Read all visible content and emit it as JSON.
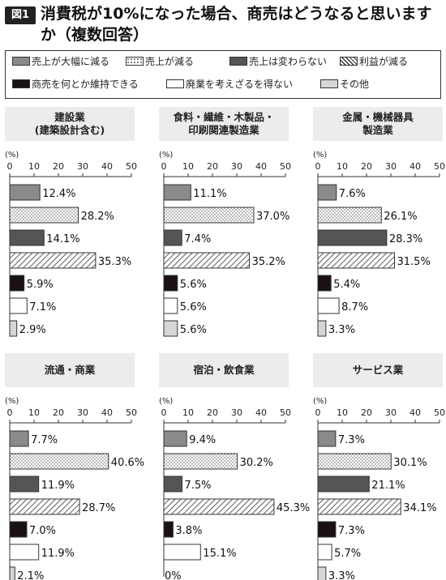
{
  "figure": {
    "badge": "図1",
    "title": "消費税が10%になった場合、商売はどうなると思いますか（複数回答）"
  },
  "colors": {
    "dec_large": "#8a8a8a",
    "dec": "dots",
    "unchanged": "#555555",
    "profit_down": "hatch",
    "maintain": "#1a1212",
    "close": "#ffffff",
    "other": "#d6d6d6"
  },
  "legend": [
    {
      "key": "dec_large",
      "label": "売上が大幅に減る"
    },
    {
      "key": "dec",
      "label": "売上が減る"
    },
    {
      "key": "unchanged",
      "label": "売上は変わらない"
    },
    {
      "key": "profit_down",
      "label": "利益が減る"
    },
    {
      "key": "maintain",
      "label": "商売を何とか維持できる"
    },
    {
      "key": "close",
      "label": "廃業を考えざるを得ない"
    },
    {
      "key": "other",
      "label": "その他"
    }
  ],
  "chart_data": [
    {
      "type": "bar",
      "title": "建設業\n(建築設計含む)",
      "unit": "(%)",
      "xlim": [
        0,
        50
      ],
      "ticks": [
        0,
        10,
        20,
        30,
        40,
        50
      ],
      "categories": [
        "売上が大幅に減る",
        "売上が減る",
        "売上は変わらない",
        "利益が減る",
        "商売を何とか維持できる",
        "廃業を考えざるを得ない",
        "その他"
      ],
      "values": [
        12.4,
        28.2,
        14.1,
        35.3,
        5.9,
        7.1,
        2.9
      ],
      "labels": [
        "12.4%",
        "28.2%",
        "14.1%",
        "35.3%",
        "5.9%",
        "7.1%",
        "2.9%"
      ]
    },
    {
      "type": "bar",
      "title": "食料・繊維・木製品・\n印刷関連製造業",
      "unit": "(%)",
      "xlim": [
        0,
        50
      ],
      "ticks": [
        0,
        10,
        20,
        30,
        40,
        50
      ],
      "categories": [
        "売上が大幅に減る",
        "売上が減る",
        "売上は変わらない",
        "利益が減る",
        "商売を何とか維持できる",
        "廃業を考えざるを得ない",
        "その他"
      ],
      "values": [
        11.1,
        37.0,
        7.4,
        35.2,
        5.6,
        5.6,
        5.6
      ],
      "labels": [
        "11.1%",
        "37.0%",
        "7.4%",
        "35.2%",
        "5.6%",
        "5.6%",
        "5.6%"
      ]
    },
    {
      "type": "bar",
      "title": "金属・機械器具\n製造業",
      "unit": "(%)",
      "xlim": [
        0,
        50
      ],
      "ticks": [
        0,
        10,
        20,
        30,
        40,
        50
      ],
      "categories": [
        "売上が大幅に減る",
        "売上が減る",
        "売上は変わらない",
        "利益が減る",
        "商売を何とか維持できる",
        "廃業を考えざるを得ない",
        "その他"
      ],
      "values": [
        7.6,
        26.1,
        28.3,
        31.5,
        5.4,
        8.7,
        3.3
      ],
      "labels": [
        "7.6%",
        "26.1%",
        "28.3%",
        "31.5%",
        "5.4%",
        "8.7%",
        "3.3%"
      ]
    },
    {
      "type": "bar",
      "title": "流通・商業",
      "unit": "(%)",
      "xlim": [
        0,
        50
      ],
      "ticks": [
        0,
        10,
        20,
        30,
        40,
        50
      ],
      "categories": [
        "売上が大幅に減る",
        "売上が減る",
        "売上は変わらない",
        "利益が減る",
        "商売を何とか維持できる",
        "廃業を考えざるを得ない",
        "その他"
      ],
      "values": [
        7.7,
        40.6,
        11.9,
        28.7,
        7.0,
        11.9,
        2.1
      ],
      "labels": [
        "7.7%",
        "40.6%",
        "11.9%",
        "28.7%",
        "7.0%",
        "11.9%",
        "2.1%"
      ]
    },
    {
      "type": "bar",
      "title": "宿泊・飲食業",
      "unit": "(%)",
      "xlim": [
        0,
        50
      ],
      "ticks": [
        0,
        10,
        20,
        30,
        40,
        50
      ],
      "categories": [
        "売上が大幅に減る",
        "売上が減る",
        "売上は変わらない",
        "利益が減る",
        "商売を何とか維持できる",
        "廃業を考えざるを得ない",
        "その他"
      ],
      "values": [
        9.4,
        30.2,
        7.5,
        45.3,
        3.8,
        15.1,
        0
      ],
      "labels": [
        "9.4%",
        "30.2%",
        "7.5%",
        "45.3%",
        "3.8%",
        "15.1%",
        "0%"
      ]
    },
    {
      "type": "bar",
      "title": "サービス業",
      "unit": "(%)",
      "xlim": [
        0,
        50
      ],
      "ticks": [
        0,
        10,
        20,
        30,
        40,
        50
      ],
      "categories": [
        "売上が大幅に減る",
        "売上が減る",
        "売上は変わらない",
        "利益が減る",
        "商売を何とか維持できる",
        "廃業を考えざるを得ない",
        "その他"
      ],
      "values": [
        7.3,
        30.1,
        21.1,
        34.1,
        7.3,
        5.7,
        3.3
      ],
      "labels": [
        "7.3%",
        "30.1%",
        "21.1%",
        "34.1%",
        "7.3%",
        "5.7%",
        "3.3%"
      ]
    }
  ]
}
